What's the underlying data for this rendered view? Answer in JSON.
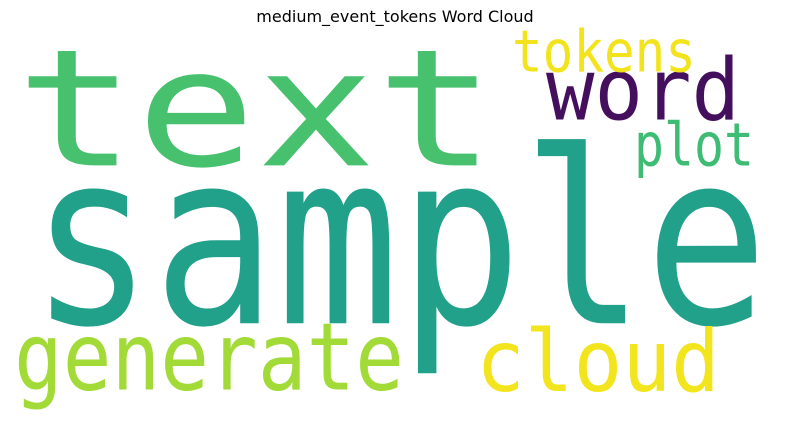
{
  "chart_data": {
    "type": "wordcloud",
    "title": "medium_event_tokens Word Cloud",
    "words": [
      {
        "text": "sample",
        "color": "#21a08a"
      },
      {
        "text": "text",
        "color": "#48c16e"
      },
      {
        "text": "word",
        "color": "#440f5d"
      },
      {
        "text": "tokens",
        "color": "#f3e31c"
      },
      {
        "text": "plot",
        "color": "#3ebc74"
      },
      {
        "text": "generate",
        "color": "#a2da37"
      },
      {
        "text": "cloud",
        "color": "#f2e51d"
      }
    ]
  }
}
